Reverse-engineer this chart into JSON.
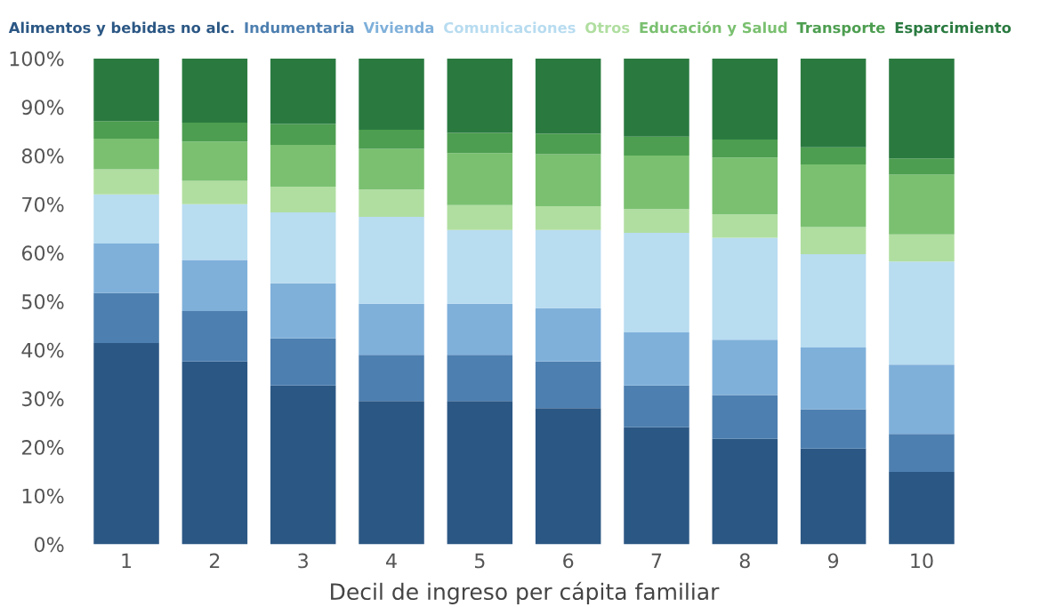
{
  "chart_data": {
    "type": "bar",
    "stacked": true,
    "xlabel": "Decil de ingreso per cápita familiar",
    "categories": [
      "1",
      "2",
      "3",
      "4",
      "5",
      "6",
      "7",
      "8",
      "9",
      "10"
    ],
    "series": [
      {
        "name": "Alimentos y bebidas no alc.",
        "color": "#2b5784",
        "values": [
          41.4,
          37.6,
          32.7,
          29.5,
          29.5,
          28.0,
          24.1,
          21.7,
          19.7,
          14.9
        ]
      },
      {
        "name": "Indumentaria",
        "color": "#4d7fb0",
        "values": [
          10.3,
          10.4,
          9.7,
          9.5,
          9.5,
          9.6,
          8.6,
          9.0,
          8.1,
          7.8
        ]
      },
      {
        "name": "Vivienda",
        "color": "#7fb0da",
        "values": [
          10.2,
          10.5,
          11.3,
          10.5,
          10.5,
          11.0,
          10.9,
          11.4,
          12.7,
          14.3
        ]
      },
      {
        "name": "Comunicaciones",
        "color": "#b8dcf0",
        "values": [
          10.1,
          11.5,
          14.6,
          17.9,
          15.2,
          16.1,
          20.5,
          21.0,
          19.2,
          21.2
        ]
      },
      {
        "name": "Otros",
        "color": "#b0dea0",
        "values": [
          5.2,
          4.8,
          5.3,
          5.6,
          5.1,
          4.9,
          4.9,
          4.8,
          5.6,
          5.6
        ]
      },
      {
        "name": "Educación y Salud",
        "color": "#7ac070",
        "values": [
          6.3,
          8.1,
          8.6,
          8.4,
          10.7,
          10.7,
          11.0,
          11.7,
          12.9,
          12.3
        ]
      },
      {
        "name": "Transporte",
        "color": "#4d9e50",
        "values": [
          3.6,
          3.9,
          4.3,
          3.9,
          4.2,
          4.2,
          3.9,
          3.7,
          3.5,
          3.3
        ]
      },
      {
        "name": "Esparcimiento",
        "color": "#2a7a40",
        "values": [
          12.9,
          13.2,
          13.5,
          14.7,
          15.3,
          15.5,
          16.1,
          16.7,
          18.3,
          20.6
        ]
      }
    ],
    "ylim": [
      0,
      100
    ],
    "yticks": [
      {
        "value": 0,
        "label": "0%"
      },
      {
        "value": 10,
        "label": "10%"
      },
      {
        "value": 20,
        "label": "20%"
      },
      {
        "value": 30,
        "label": "30%"
      },
      {
        "value": 40,
        "label": "40%"
      },
      {
        "value": 50,
        "label": "50%"
      },
      {
        "value": 60,
        "label": "60%"
      },
      {
        "value": 70,
        "label": "70%"
      },
      {
        "value": 80,
        "label": "80%"
      },
      {
        "value": 90,
        "label": "90%"
      },
      {
        "value": 100,
        "label": "100%"
      }
    ],
    "grid": false,
    "legend": "top"
  }
}
